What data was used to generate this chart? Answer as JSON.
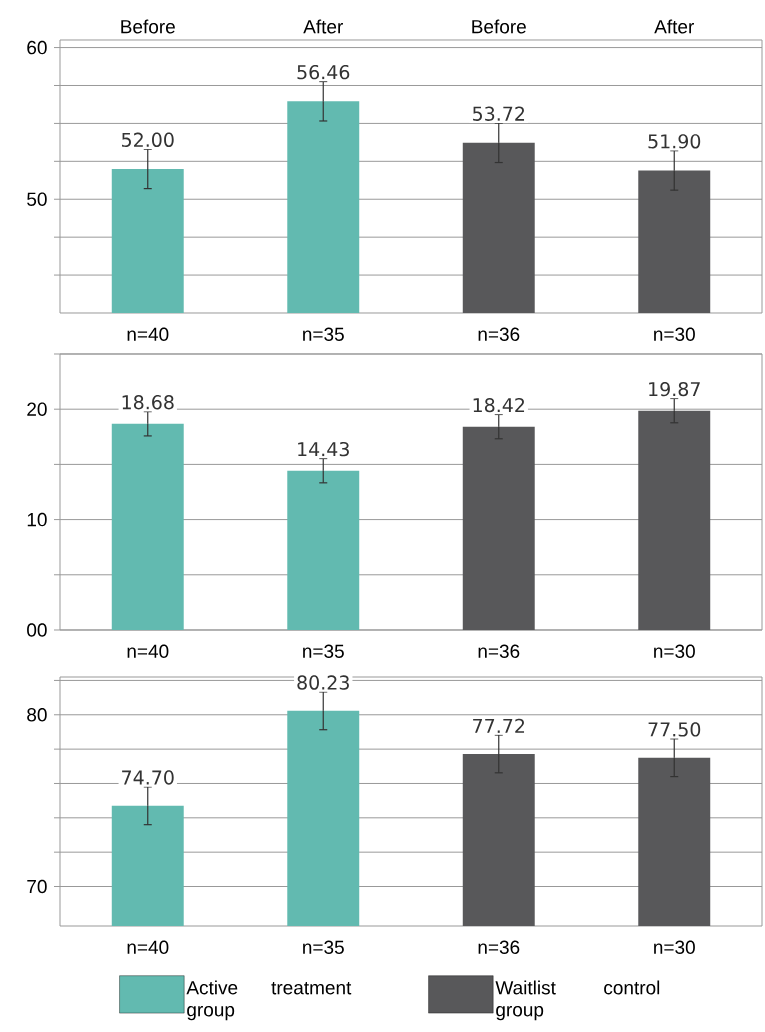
{
  "chart_data": [
    {
      "type": "bar",
      "categories": [
        "n=40",
        "n=35",
        "n=36",
        "n=30"
      ],
      "annotations": [
        "Before",
        "After",
        "Before",
        "After"
      ],
      "series": [
        {
          "color": "#62bab0",
          "values": [
            52.0,
            56.46,
            null,
            null
          ],
          "errors": [
            1.3,
            1.3,
            null,
            null
          ],
          "value_labels": [
            "52.00",
            "56.46",
            null,
            null
          ]
        },
        {
          "color": "#58585a",
          "values": [
            null,
            null,
            53.72,
            51.9
          ],
          "errors": [
            null,
            null,
            1.3,
            1.3
          ],
          "value_labels": [
            null,
            null,
            "53.72",
            "51.90"
          ]
        }
      ],
      "ylim": [
        42.5,
        60.5
      ],
      "yticks": [
        {
          "value": 45,
          "label": null
        },
        {
          "value": 47.5,
          "label": null
        },
        50,
        {
          "value": 52.5,
          "label": null
        },
        {
          "value": 55,
          "label": null
        },
        {
          "value": 57.5,
          "label": null
        },
        60
      ],
      "grid": "y"
    },
    {
      "type": "bar",
      "categories": [
        "n=40",
        "n=35",
        "n=36",
        "n=30"
      ],
      "series": [
        {
          "color": "#62bab0",
          "values": [
            18.68,
            14.43,
            null,
            null
          ],
          "errors": [
            1.1,
            1.1,
            null,
            null
          ],
          "value_labels": [
            "18.68",
            "14.43",
            null,
            null
          ]
        },
        {
          "color": "#58585a",
          "values": [
            null,
            null,
            18.42,
            19.87
          ],
          "errors": [
            null,
            null,
            1.1,
            1.1
          ],
          "value_labels": [
            null,
            null,
            "18.42",
            "19.87"
          ]
        }
      ],
      "ylim": [
        0,
        25
      ],
      "yticks": [
        {
          "value": 0,
          "label": "00"
        },
        {
          "value": 5,
          "label": null
        },
        10,
        {
          "value": 15,
          "label": null
        },
        20,
        {
          "value": 25,
          "label": null
        }
      ],
      "grid": "y"
    },
    {
      "type": "bar",
      "categories": [
        "n=40",
        "n=35",
        "n=36",
        "n=30"
      ],
      "series": [
        {
          "name": "Active treatment group",
          "color": "#62bab0",
          "values": [
            74.7,
            80.23,
            null,
            null
          ],
          "errors": [
            1.1,
            1.1,
            null,
            null
          ],
          "value_labels": [
            "74.70",
            "80.23",
            null,
            null
          ]
        },
        {
          "name": "Waitlist control group",
          "color": "#58585a",
          "values": [
            null,
            null,
            77.72,
            77.5
          ],
          "errors": [
            null,
            null,
            1.1,
            1.1
          ],
          "value_labels": [
            null,
            null,
            "77.72",
            "77.50"
          ]
        }
      ],
      "ylim": [
        67.7,
        82.2
      ],
      "yticks": [
        70,
        {
          "value": 72,
          "label": null
        },
        {
          "value": 74,
          "label": null
        },
        {
          "value": 76,
          "label": null
        },
        {
          "value": 78,
          "label": null
        },
        80,
        {
          "value": 82,
          "label": null
        }
      ],
      "grid": "y",
      "legend": "bottom"
    }
  ]
}
